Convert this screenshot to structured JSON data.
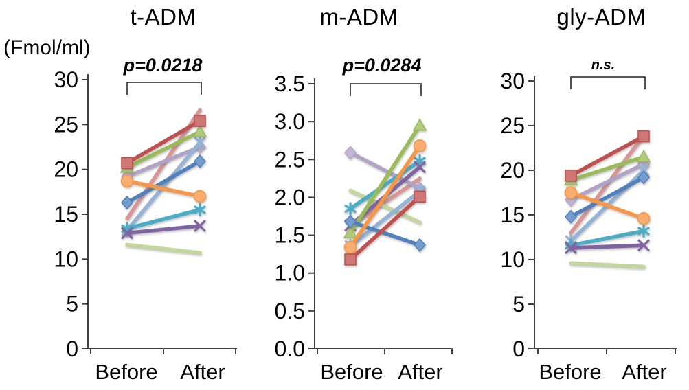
{
  "figure": {
    "unit_label": "(Fmol/ml)",
    "axis_color": "#404040",
    "text_color": "#000000"
  },
  "chart_data": {
    "type": "line",
    "layout_note": "three paired-sample before/after line plots",
    "x_categories": [
      "Before",
      "After"
    ],
    "charts": [
      {
        "key": "t_adm",
        "title": "t-ADM",
        "p_label": "p=0.0218",
        "ylim": [
          0,
          30
        ],
        "ytick_values": [
          30,
          25,
          20,
          15,
          10,
          5,
          0
        ],
        "ytick_labels": [
          "30",
          "25",
          "20",
          "15",
          "10",
          "5",
          "0"
        ]
      },
      {
        "key": "m_adm",
        "title": "m-ADM",
        "p_label": "p=0.0284",
        "ylim": [
          0,
          3.5
        ],
        "ytick_values": [
          3.5,
          3.0,
          2.5,
          2.0,
          1.5,
          1.0,
          0.5,
          0.0
        ],
        "ytick_labels": [
          "3.5",
          "3.0",
          "2.5",
          "2.0",
          "1.5",
          "1.0",
          "0.5",
          "0.0"
        ]
      },
      {
        "key": "gly_adm",
        "title": "gly-ADM",
        "p_label": "n.s.",
        "ylim": [
          0,
          30
        ],
        "ytick_values": [
          30,
          25,
          20,
          15,
          10,
          5,
          0
        ],
        "ytick_labels": [
          "30",
          "25",
          "20",
          "15",
          "10",
          "5",
          "0"
        ]
      }
    ],
    "series": [
      {
        "name": "salmon-line",
        "color": "#D99694",
        "marker": "none",
        "t_adm": [
          14.5,
          26.6
        ],
        "m_adm": [
          1.62,
          2.25
        ],
        "gly_adm": [
          13.0,
          23.9
        ]
      },
      {
        "name": "light-green-line",
        "color": "#C3D69B",
        "marker": "none",
        "t_adm": [
          11.6,
          10.7
        ],
        "m_adm": [
          2.09,
          1.67
        ],
        "gly_adm": [
          9.6,
          9.2
        ]
      },
      {
        "name": "lavender-diamond",
        "color": "#B3A2C7",
        "marker": "diamond",
        "t_adm": [
          19.2,
          22.5
        ],
        "m_adm": [
          2.59,
          2.12
        ],
        "gly_adm": [
          16.7,
          20.7
        ]
      },
      {
        "name": "periwinkle-star",
        "color": "#95B3D7",
        "marker": "star",
        "t_adm": [
          13.2,
          23.0
        ],
        "m_adm": [
          1.36,
          2.08
        ],
        "gly_adm": [
          12.1,
          20.0
        ]
      },
      {
        "name": "teal-asterisk",
        "color": "#4BACC6",
        "marker": "asterisk",
        "t_adm": [
          13.4,
          15.5
        ],
        "m_adm": [
          1.85,
          2.48
        ],
        "gly_adm": [
          11.6,
          13.2
        ]
      },
      {
        "name": "purple-x",
        "color": "#8064A2",
        "marker": "x",
        "t_adm": [
          12.9,
          13.7
        ],
        "m_adm": [
          1.63,
          2.4
        ],
        "gly_adm": [
          11.3,
          11.6
        ]
      },
      {
        "name": "green-triangle",
        "color": "#9BBB59",
        "marker": "triangle",
        "t_adm": [
          20.2,
          24.2
        ],
        "m_adm": [
          1.53,
          2.95
        ],
        "gly_adm": [
          18.9,
          21.5
        ]
      },
      {
        "name": "blue-diamond",
        "color": "#4F81BD",
        "marker": "diamond",
        "t_adm": [
          16.3,
          20.9
        ],
        "m_adm": [
          1.68,
          1.37
        ],
        "gly_adm": [
          14.8,
          19.2
        ]
      },
      {
        "name": "orange-circle",
        "color": "#F79646",
        "marker": "circle",
        "t_adm": [
          18.7,
          17.0
        ],
        "m_adm": [
          1.34,
          2.68
        ],
        "gly_adm": [
          17.5,
          14.6
        ]
      },
      {
        "name": "red-square",
        "color": "#C0504D",
        "marker": "square",
        "t_adm": [
          20.7,
          25.4
        ],
        "m_adm": [
          1.18,
          2.01
        ],
        "gly_adm": [
          19.4,
          23.8
        ]
      }
    ]
  }
}
